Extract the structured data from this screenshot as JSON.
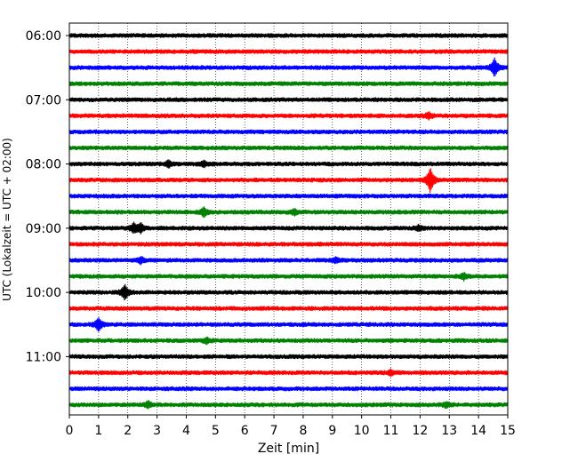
{
  "chart_data": {
    "type": "line",
    "title": "",
    "xlabel": "Zeit  [min]",
    "ylabel": "UTC (Lokalzeit = UTC + 02:00)",
    "xlim": [
      0,
      15
    ],
    "x_ticks": [
      "0",
      "1",
      "2",
      "3",
      "4",
      "5",
      "6",
      "7",
      "8",
      "9",
      "10",
      "11",
      "12",
      "13",
      "14",
      "15"
    ],
    "y_ticks": [
      "06:00",
      "07:00",
      "08:00",
      "09:00",
      "10:00",
      "11:00"
    ],
    "y_tick_row_index": [
      0,
      4,
      8,
      12,
      16,
      20
    ],
    "grid": "vertical dotted lines at each minute",
    "trace_duration_min": 15,
    "colors_cycle": [
      "#000000",
      "#ff0000",
      "#0000ff",
      "#008000"
    ],
    "series": [
      {
        "start": "06:00",
        "color": "#000000",
        "events": []
      },
      {
        "start": "06:15",
        "color": "#ff0000",
        "events": []
      },
      {
        "start": "06:30",
        "color": "#0000ff",
        "events": [
          {
            "t": 14.55,
            "amp": 1.1
          }
        ]
      },
      {
        "start": "06:45",
        "color": "#008000",
        "events": []
      },
      {
        "start": "07:00",
        "color": "#000000",
        "events": []
      },
      {
        "start": "07:15",
        "color": "#ff0000",
        "events": [
          {
            "t": 12.3,
            "amp": 0.35
          }
        ]
      },
      {
        "start": "07:30",
        "color": "#0000ff",
        "events": []
      },
      {
        "start": "07:45",
        "color": "#008000",
        "events": []
      },
      {
        "start": "08:00",
        "color": "#000000",
        "events": [
          {
            "t": 3.4,
            "amp": 0.35
          },
          {
            "t": 4.6,
            "amp": 0.3
          }
        ]
      },
      {
        "start": "08:15",
        "color": "#ff0000",
        "events": [
          {
            "t": 12.35,
            "amp": 1.5
          }
        ]
      },
      {
        "start": "08:30",
        "color": "#0000ff",
        "events": []
      },
      {
        "start": "08:45",
        "color": "#008000",
        "events": [
          {
            "t": 4.6,
            "amp": 0.5
          },
          {
            "t": 7.7,
            "amp": 0.3
          }
        ]
      },
      {
        "start": "09:00",
        "color": "#000000",
        "events": [
          {
            "t": 2.2,
            "amp": 0.55
          },
          {
            "t": 2.45,
            "amp": 0.5
          },
          {
            "t": 11.95,
            "amp": 0.3
          }
        ]
      },
      {
        "start": "09:15",
        "color": "#ff0000",
        "events": []
      },
      {
        "start": "09:30",
        "color": "#0000ff",
        "events": [
          {
            "t": 2.45,
            "amp": 0.35
          },
          {
            "t": 9.1,
            "amp": 0.3
          }
        ]
      },
      {
        "start": "09:45",
        "color": "#008000",
        "events": [
          {
            "t": 13.5,
            "amp": 0.35
          }
        ]
      },
      {
        "start": "10:00",
        "color": "#000000",
        "events": [
          {
            "t": 1.9,
            "amp": 0.9
          }
        ]
      },
      {
        "start": "10:15",
        "color": "#ff0000",
        "events": []
      },
      {
        "start": "10:30",
        "color": "#0000ff",
        "events": [
          {
            "t": 1.0,
            "amp": 0.75
          }
        ]
      },
      {
        "start": "10:45",
        "color": "#008000",
        "events": [
          {
            "t": 4.7,
            "amp": 0.3
          }
        ]
      },
      {
        "start": "11:00",
        "color": "#000000",
        "events": []
      },
      {
        "start": "11:15",
        "color": "#ff0000",
        "events": [
          {
            "t": 11.0,
            "amp": 0.3
          }
        ]
      },
      {
        "start": "11:30",
        "color": "#0000ff",
        "events": []
      },
      {
        "start": "11:45",
        "color": "#008000",
        "events": [
          {
            "t": 2.7,
            "amp": 0.35
          },
          {
            "t": 12.9,
            "amp": 0.3
          }
        ]
      }
    ]
  }
}
